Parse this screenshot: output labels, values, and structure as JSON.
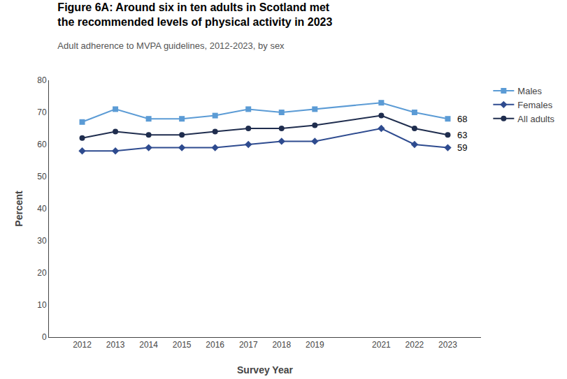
{
  "chart_data": {
    "type": "line",
    "title": "Figure 6A: Around six in ten adults in Scotland met\nthe recommended levels of physical activity in 2023",
    "subtitle": "Adult adherence to MVPA guidelines, 2012-2023, by sex",
    "xlabel": "Survey Year",
    "ylabel": "Percent",
    "x": [
      2012,
      2013,
      2014,
      2015,
      2016,
      2017,
      2018,
      2019,
      2021,
      2022,
      2023
    ],
    "xlim": [
      2011,
      2024
    ],
    "xticks": [
      2012,
      2013,
      2014,
      2015,
      2016,
      2017,
      2018,
      2019,
      2021,
      2022,
      2023
    ],
    "ylim": [
      0,
      80
    ],
    "yticks": [
      0,
      10,
      20,
      30,
      40,
      50,
      60,
      70,
      80
    ],
    "grid": false,
    "legend": "upper right",
    "series": [
      {
        "name": "Males",
        "color": "#5B9BD5",
        "marker": "square",
        "values": [
          67,
          71,
          68,
          68,
          69,
          71,
          70,
          71,
          73,
          70,
          68
        ]
      },
      {
        "name": "Females",
        "color": "#2E4B8F",
        "marker": "diamond",
        "values": [
          58,
          58,
          59,
          59,
          59,
          60,
          61,
          61,
          65,
          60,
          59
        ]
      },
      {
        "name": "All adults",
        "color": "#1F2D4E",
        "marker": "circle",
        "values": [
          62,
          64,
          63,
          63,
          64,
          65,
          65,
          66,
          69,
          65,
          63
        ]
      }
    ],
    "annotations": [
      {
        "text": "68",
        "x": 2023,
        "y": 68
      },
      {
        "text": "63",
        "x": 2023,
        "y": 63
      },
      {
        "text": "59",
        "x": 2023,
        "y": 59
      }
    ]
  }
}
